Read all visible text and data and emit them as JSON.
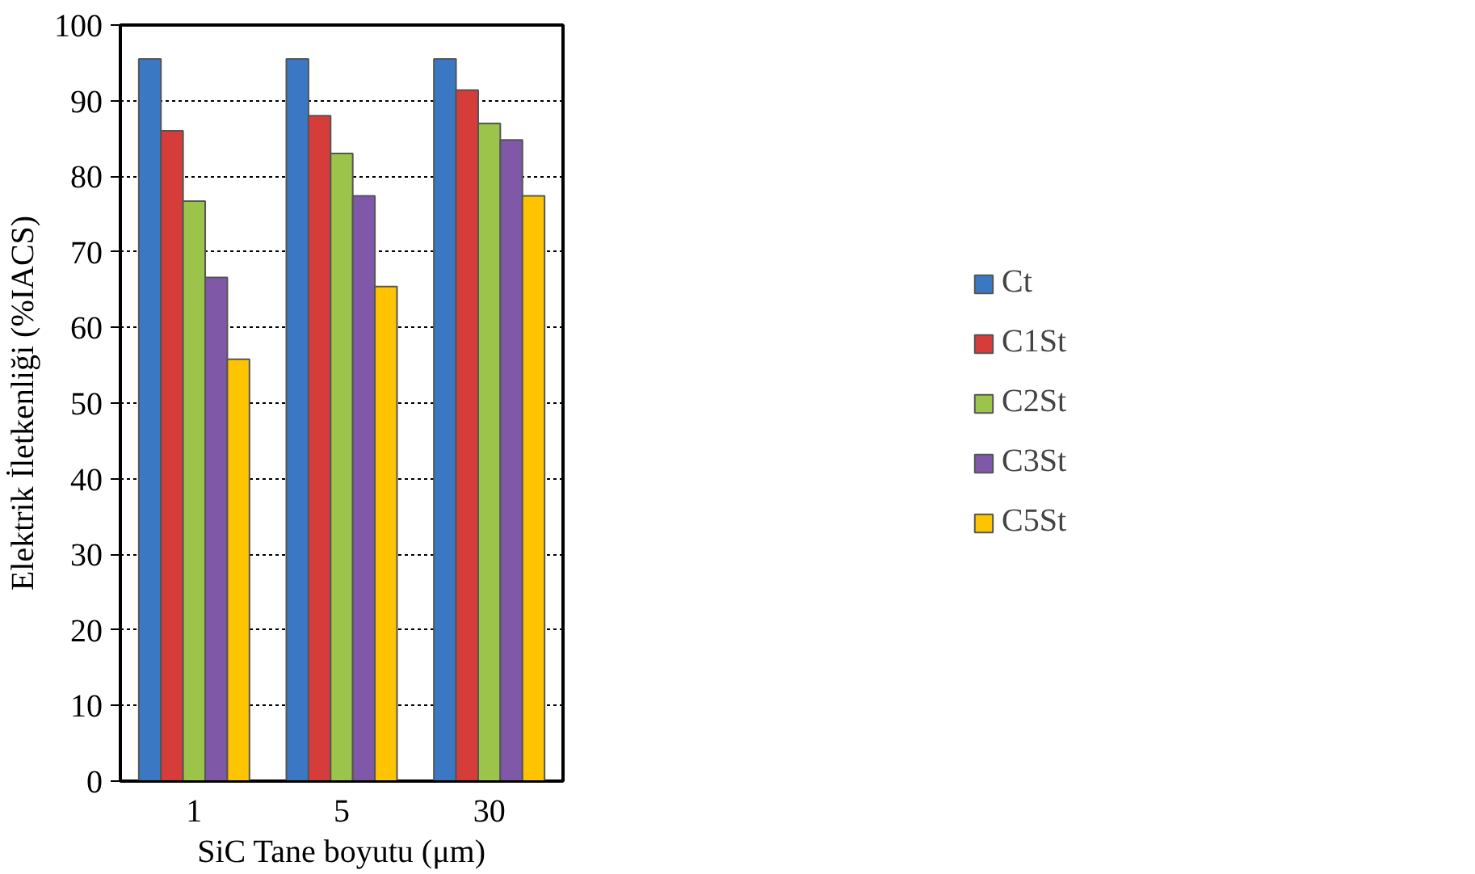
{
  "chart_data": {
    "type": "bar",
    "xlabel": "SiC Tane boyutu (μm)",
    "ylabel": "Elektrik İletkenliği (%IACS)",
    "categories": [
      "1",
      "5",
      "30"
    ],
    "series": [
      {
        "name": "Ct",
        "color": "#3a78c4",
        "values": [
          95.5,
          95.5,
          95.5
        ]
      },
      {
        "name": "C1St",
        "color": "#d63c3a",
        "values": [
          86,
          88,
          91.4
        ]
      },
      {
        "name": "C2St",
        "color": "#9cc44a",
        "values": [
          76.7,
          83,
          87
        ]
      },
      {
        "name": "C3St",
        "color": "#7f58a8",
        "values": [
          66.6,
          77.4,
          84.8
        ]
      },
      {
        "name": "C5St",
        "color": "#ffc400",
        "values": [
          55.8,
          65.4,
          77.4
        ]
      }
    ],
    "ylim": [
      0,
      100
    ],
    "yticks": [
      0,
      10,
      20,
      30,
      40,
      50,
      60,
      70,
      80,
      90,
      100
    ],
    "grid": "y",
    "legend": "right"
  }
}
